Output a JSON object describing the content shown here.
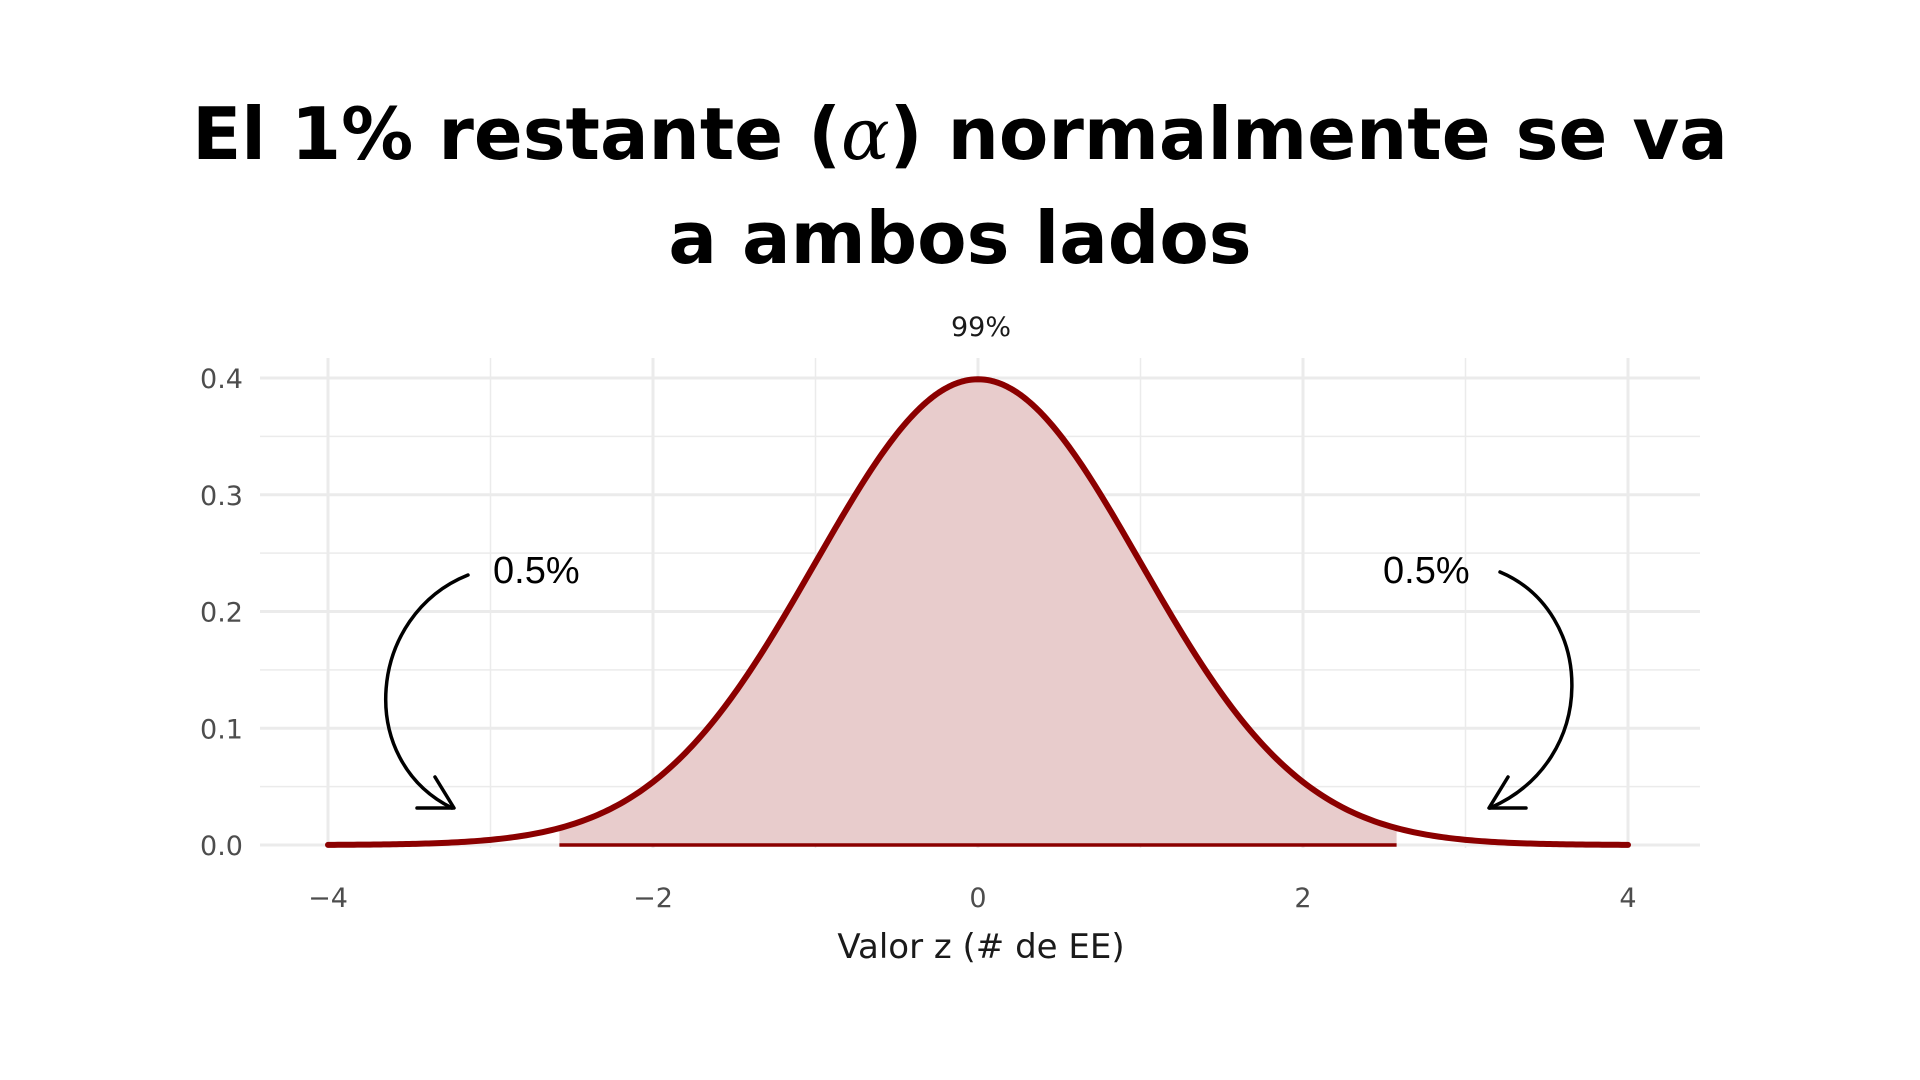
{
  "slide": {
    "title_part1": "El 1% restante (",
    "title_alpha": "α",
    "title_part2": ") normalmente se va  a ambos lados"
  },
  "chart_data": {
    "type": "area",
    "distribution": "standard-normal",
    "title": "99%",
    "xlabel": "Valor z (# de EE)",
    "ylabel": "",
    "xlim": [
      -4,
      4
    ],
    "ylim": [
      0,
      0.4
    ],
    "x_ticks": [
      -4,
      -2,
      0,
      2,
      4
    ],
    "x_tick_labels": [
      "−4",
      "−2",
      "0",
      "2",
      "4"
    ],
    "y_ticks": [
      0.0,
      0.1,
      0.2,
      0.3,
      0.4
    ],
    "y_tick_labels": [
      "0.0",
      "0.1",
      "0.2",
      "0.3",
      "0.4"
    ],
    "shaded_region": [
      -2.576,
      2.576
    ],
    "shaded_area_label": "99%",
    "grid": true,
    "curve": [
      {
        "x": -4.0,
        "y": 0.0001
      },
      {
        "x": -3.5,
        "y": 0.0009
      },
      {
        "x": -3.0,
        "y": 0.0044
      },
      {
        "x": -2.5,
        "y": 0.0175
      },
      {
        "x": -2.0,
        "y": 0.054
      },
      {
        "x": -1.5,
        "y": 0.1295
      },
      {
        "x": -1.0,
        "y": 0.242
      },
      {
        "x": -0.5,
        "y": 0.3521
      },
      {
        "x": 0.0,
        "y": 0.3989
      },
      {
        "x": 0.5,
        "y": 0.3521
      },
      {
        "x": 1.0,
        "y": 0.242
      },
      {
        "x": 1.5,
        "y": 0.1295
      },
      {
        "x": 2.0,
        "y": 0.054
      },
      {
        "x": 2.5,
        "y": 0.0175
      },
      {
        "x": 3.0,
        "y": 0.0044
      },
      {
        "x": 3.5,
        "y": 0.0009
      },
      {
        "x": 4.0,
        "y": 0.0001
      }
    ],
    "annotations": [
      {
        "text": "0.5%",
        "side": "left"
      },
      {
        "text": "0.5%",
        "side": "right"
      }
    ],
    "colors": {
      "curve": "#8b0000",
      "fill": "#e8cccc",
      "grid": "#ebebeb"
    }
  }
}
